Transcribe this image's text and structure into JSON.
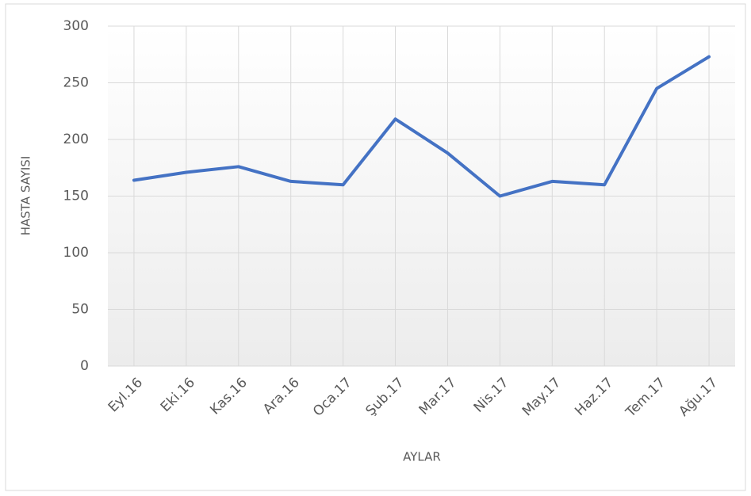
{
  "chart_data": {
    "type": "line",
    "x_label": "AYLAR",
    "y_label": "HASTA SAYISI",
    "categories": [
      "Eyl.16",
      "Eki.16",
      "Kas.16",
      "Ara.16",
      "Oca.17",
      "Şub.17",
      "Mar.17",
      "Nis.17",
      "May.17",
      "Haz.17",
      "Tem.17",
      "Ağu.17"
    ],
    "series": [
      {
        "color": "#4472c4",
        "values": [
          164,
          171,
          176,
          163,
          160,
          218,
          188,
          150,
          163,
          160,
          245,
          273
        ]
      }
    ],
    "ylim": [
      0,
      300
    ],
    "yticks": [
      0,
      50,
      100,
      150,
      200,
      250,
      300
    ],
    "grid": true
  }
}
